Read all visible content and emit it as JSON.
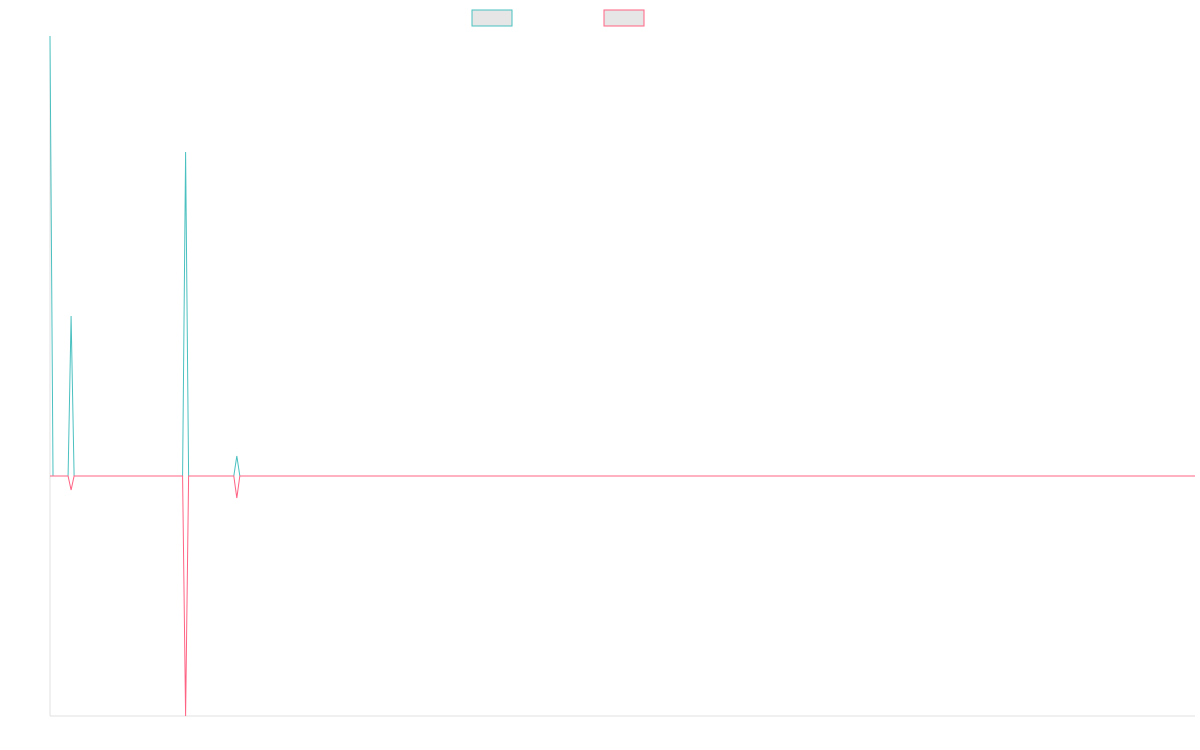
{
  "chart_data": {
    "type": "line",
    "x": [
      0,
      1,
      6,
      7,
      8,
      44,
      45,
      46,
      61,
      62,
      63,
      380
    ],
    "series": [
      {
        "color": "#4bc0c0",
        "values": [
          11,
          0,
          0,
          4,
          0,
          0,
          8.1,
          0,
          0,
          0.5,
          0,
          0
        ]
      },
      {
        "color": "#ff6384",
        "values": [
          0,
          0,
          0,
          -0.35,
          0,
          0,
          -6,
          0,
          0,
          -0.55,
          0,
          0
        ]
      }
    ],
    "xlim": [
      0,
      380
    ],
    "ylim": [
      -6,
      11
    ],
    "legend": "top"
  }
}
